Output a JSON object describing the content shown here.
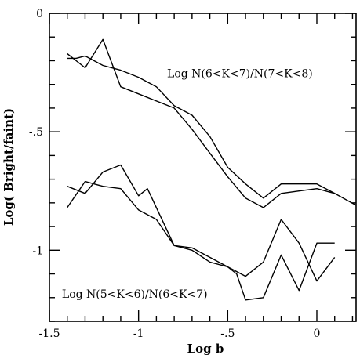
{
  "chart_data": {
    "type": "line",
    "xlabel": "Log b",
    "ylabel": "Log( Bright/faint)",
    "xlim": [
      -1.5,
      0.22
    ],
    "ylim": [
      -1.3,
      0
    ],
    "x_ticks": [
      {
        "value": -1.5,
        "label": "-1.5"
      },
      {
        "value": -1,
        "label": "-1"
      },
      {
        "value": -0.5,
        "label": "-.5"
      },
      {
        "value": 0,
        "label": "0"
      }
    ],
    "y_ticks": [
      {
        "value": 0,
        "label": "0"
      },
      {
        "value": -0.5,
        "label": "-.5"
      },
      {
        "value": -1,
        "label": "-1"
      }
    ],
    "x_minor_step": 0.1,
    "y_minor_step": 0.1,
    "annotations": [
      {
        "text": "Log N(6<K<7)/N(7<K<8)",
        "x": -0.84,
        "y": -0.27
      },
      {
        "text": "Log N(5<K<6)/N(6<K<7)",
        "x": -1.43,
        "y": -1.2
      }
    ],
    "series": [
      {
        "group": "N(6<K<7)/N(7<K<8)",
        "x": [
          -1.4,
          -1.35,
          -1.3,
          -1.2,
          -1.1,
          -1.0,
          -0.9,
          -0.8,
          -0.7,
          -0.6,
          -0.5,
          -0.4,
          -0.3,
          -0.2,
          -0.1,
          0.0,
          0.1,
          0.22
        ],
        "y": [
          -0.19,
          -0.19,
          -0.18,
          -0.22,
          -0.24,
          -0.27,
          -0.31,
          -0.39,
          -0.43,
          -0.52,
          -0.65,
          -0.72,
          -0.78,
          -0.72,
          -0.72,
          -0.72,
          -0.76,
          -0.81
        ]
      },
      {
        "group": "N(6<K<7)/N(7<K<8)",
        "x": [
          -1.4,
          -1.3,
          -1.2,
          -1.1,
          -1.0,
          -0.9,
          -0.8,
          -0.7,
          -0.6,
          -0.5,
          -0.4,
          -0.3,
          -0.2,
          -0.1,
          0.0,
          0.1
        ],
        "y": [
          -0.17,
          -0.23,
          -0.11,
          -0.31,
          -0.34,
          -0.37,
          -0.4,
          -0.49,
          -0.59,
          -0.69,
          -0.78,
          -0.82,
          -0.76,
          -0.75,
          -0.74,
          -0.76
        ]
      },
      {
        "group": "N(5<K<6)/N(6<K<7)",
        "x": [
          -1.4,
          -1.3,
          -1.2,
          -1.1,
          -1.0,
          -0.9,
          -0.8,
          -0.7,
          -0.6,
          -0.5,
          -0.4,
          -0.3,
          -0.2,
          -0.1,
          0.0,
          0.1
        ],
        "y": [
          -0.82,
          -0.71,
          -0.73,
          -0.74,
          -0.83,
          -0.87,
          -0.98,
          -0.99,
          -1.03,
          -1.07,
          -1.11,
          -1.05,
          -0.87,
          -0.97,
          -1.13,
          -1.03
        ]
      },
      {
        "group": "N(5<K<6)/N(6<K<7)",
        "x": [
          -1.4,
          -1.3,
          -1.2,
          -1.1,
          -1.0,
          -0.95,
          -0.9,
          -0.8,
          -0.7,
          -0.6,
          -0.5,
          -0.45,
          -0.4,
          -0.3,
          -0.2,
          -0.1,
          0.0,
          0.1
        ],
        "y": [
          -0.73,
          -0.76,
          -0.67,
          -0.64,
          -0.77,
          -0.74,
          -0.82,
          -0.98,
          -1.0,
          -1.05,
          -1.07,
          -1.1,
          -1.21,
          -1.2,
          -1.02,
          -1.17,
          -0.97,
          -0.97
        ]
      }
    ]
  }
}
